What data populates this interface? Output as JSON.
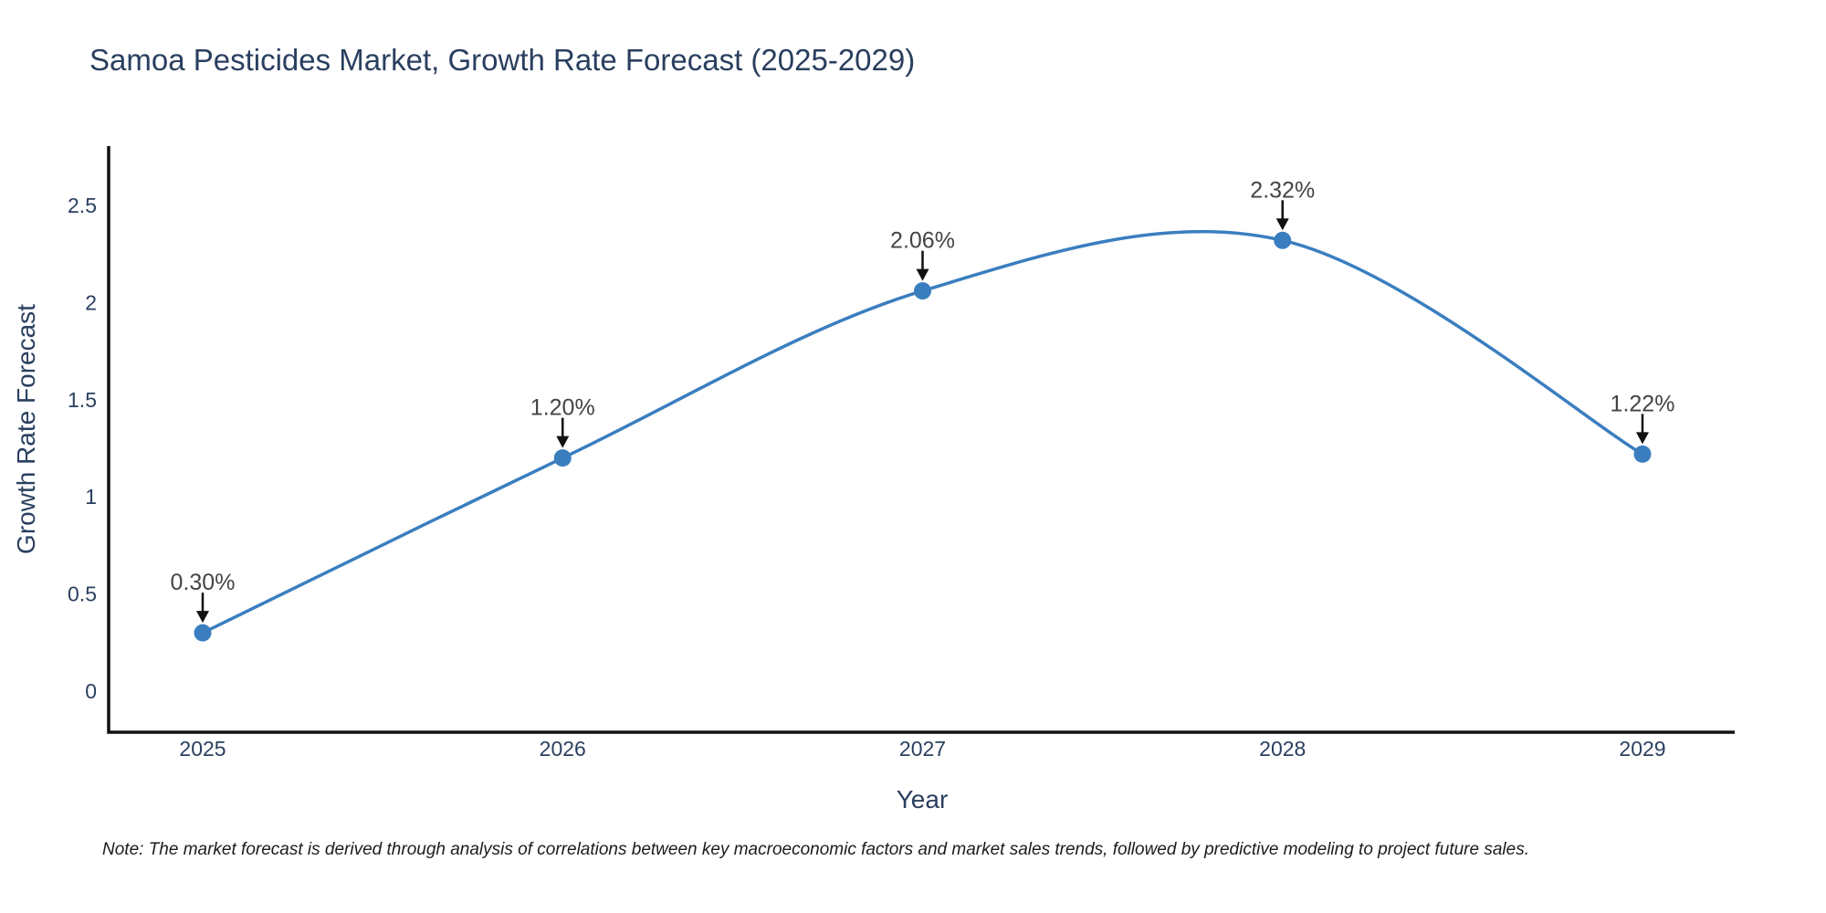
{
  "title": "Samoa Pesticides Market, Growth Rate Forecast (2025-2029)",
  "note": "Note: The market forecast is derived through analysis of correlations between key macroeconomic factors and market sales trends, followed by predictive modeling to project future sales.",
  "chart_data": {
    "type": "line",
    "title": "Samoa Pesticides Market, Growth Rate Forecast (2025-2029)",
    "xlabel": "Year",
    "ylabel": "Growth Rate Forecast",
    "categories": [
      "2025",
      "2026",
      "2027",
      "2028",
      "2029"
    ],
    "series": [
      {
        "name": "Growth Rate Forecast",
        "values": [
          0.3,
          1.2,
          2.06,
          2.32,
          1.22
        ]
      }
    ],
    "point_labels": [
      "0.30%",
      "1.20%",
      "2.06%",
      "2.32%",
      "1.22%"
    ],
    "yticks": [
      0,
      0.5,
      1,
      1.5,
      2,
      2.5
    ],
    "ylim": [
      -0.21,
      2.8
    ],
    "grid": false,
    "legend_position": "none",
    "line_style": "spline",
    "annotation_arrows": true,
    "colors": {
      "line": "#3a7ebf",
      "marker": "#3a7ebf",
      "axis": "#111111",
      "text": "#2a3f5f",
      "annotation_text": "#444444",
      "arrow": "#111111",
      "background": "#ffffff"
    }
  }
}
